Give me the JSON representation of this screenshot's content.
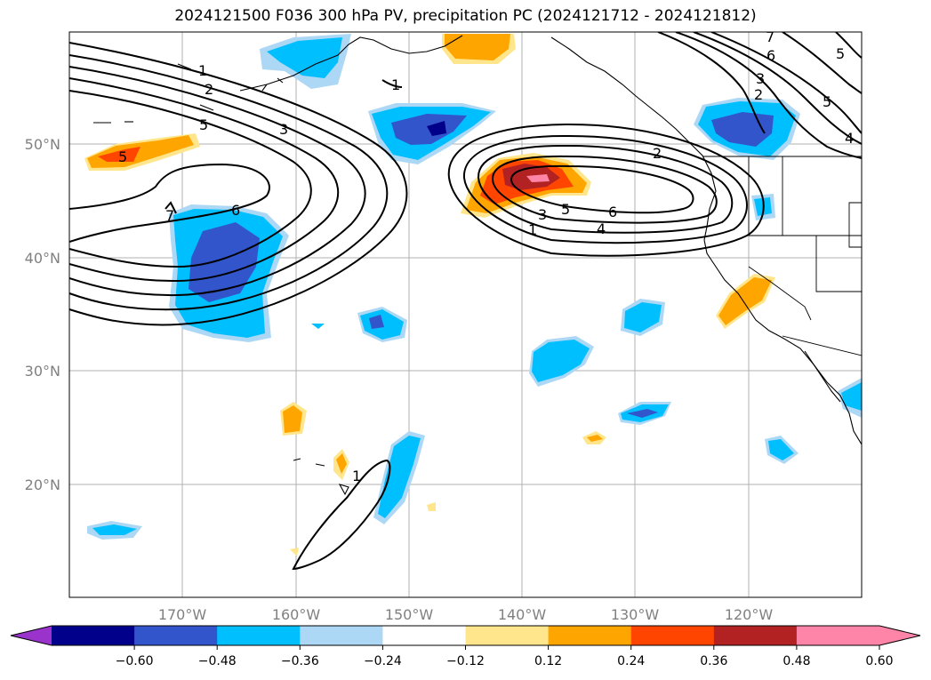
{
  "title": "2024121500 F036 300 hPa PV, precipitation PC (2024121712 - 2024121812)",
  "map": {
    "lat_labels": [
      "50°N",
      "40°N",
      "30°N",
      "20°N"
    ],
    "lon_labels": [
      "170°W",
      "160°W",
      "150°W",
      "140°W",
      "130°W",
      "120°W"
    ],
    "pv_contour_labels": [
      "1",
      "2",
      "5",
      "3",
      "6",
      "7",
      "5",
      "1",
      "2",
      "3",
      "5",
      "6",
      "4",
      "1",
      "7",
      "6",
      "5",
      "3",
      "2",
      "5",
      "4",
      "1"
    ]
  },
  "colorbar": {
    "colors": [
      "#9933cc",
      "#00008b",
      "#3355cc",
      "#00bfff",
      "#add8f5",
      "#ffffff",
      "#ffe68c",
      "#ffa500",
      "#ff4500",
      "#b22222",
      "#ff85a8",
      "#ff85a8"
    ],
    "tick_labels": [
      "−0.60",
      "−0.48",
      "−0.36",
      "−0.24",
      "−0.12",
      "0.12",
      "0.24",
      "0.36",
      "0.48",
      "0.60"
    ]
  }
}
